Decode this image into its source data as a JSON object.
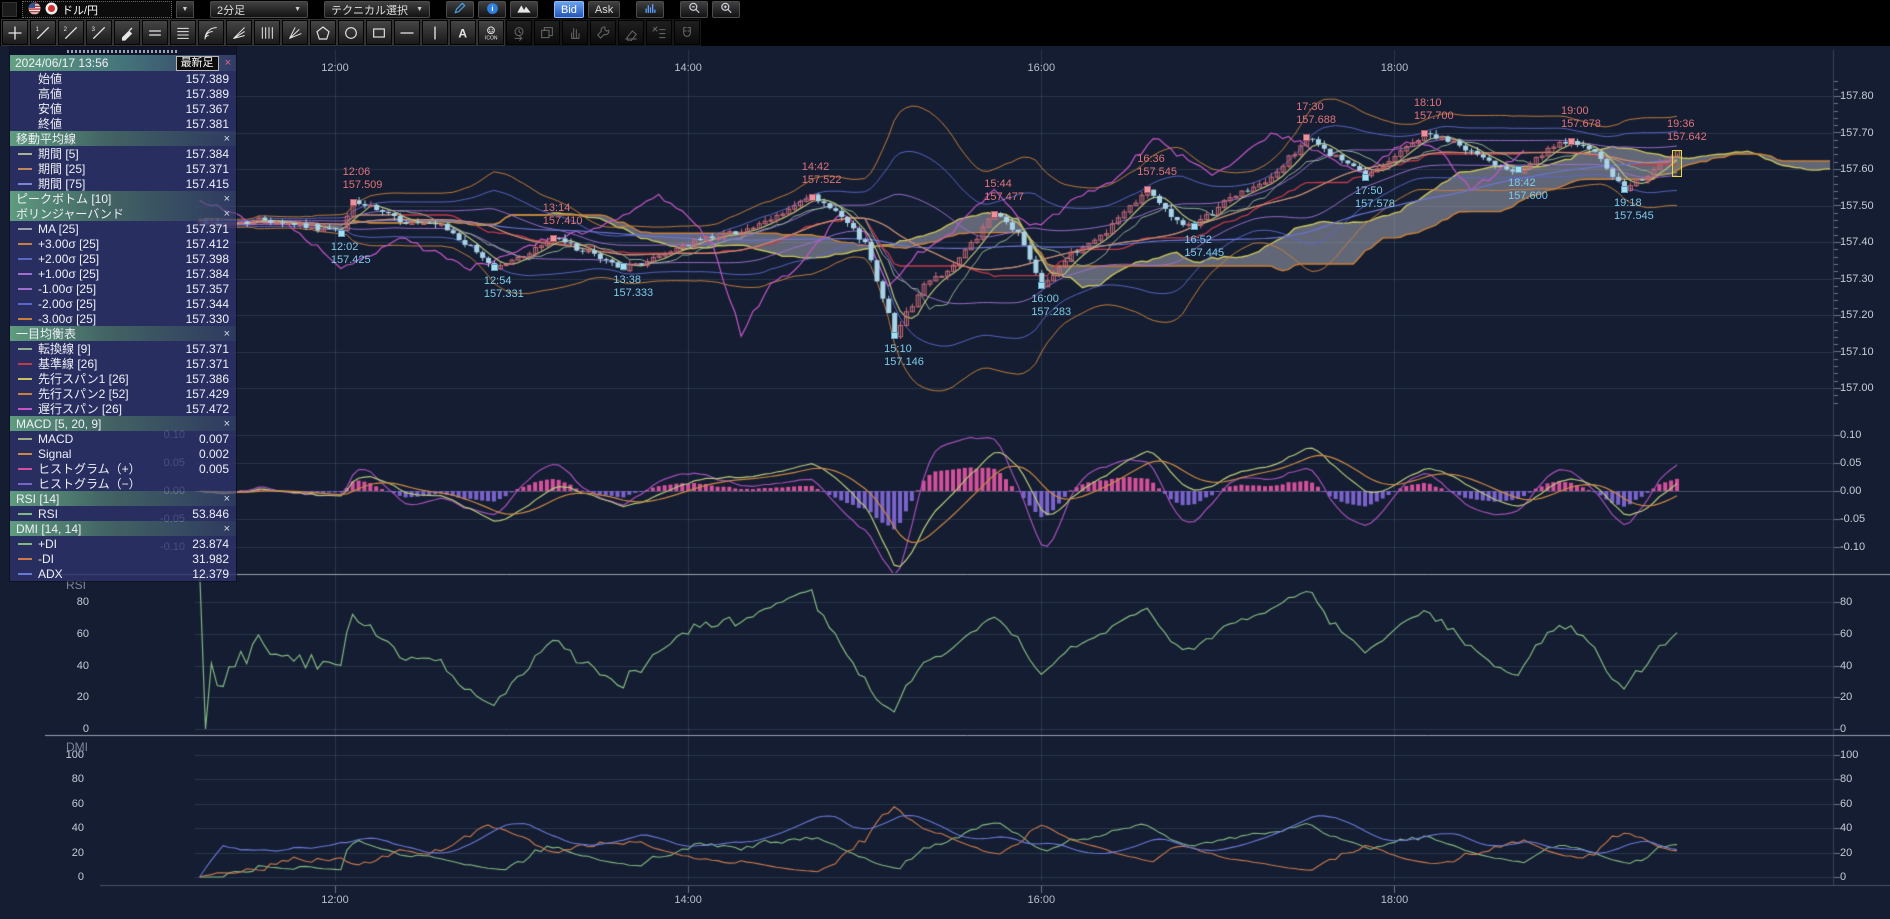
{
  "topbar": {
    "symbol": "ドル/円",
    "timeframe": "2分足",
    "technical": "テクニカル選択",
    "bid": "Bid",
    "ask": "Ask",
    "icons": [
      "us-flag",
      "jp-flag",
      "dropdown-arrow",
      "pencil",
      "info",
      "mountain",
      "bar-chart",
      "zoom-out",
      "zoom-in"
    ]
  },
  "drawbar": {
    "tools": [
      {
        "name": "crosshair",
        "enabled": true
      },
      {
        "name": "trendline-1",
        "enabled": true
      },
      {
        "name": "trendline-2",
        "enabled": true
      },
      {
        "name": "trendline-3",
        "enabled": true
      },
      {
        "name": "marker-pen",
        "enabled": true
      },
      {
        "name": "parallel-lines-2",
        "enabled": true
      },
      {
        "name": "parallel-lines-4",
        "enabled": true
      },
      {
        "name": "fibonacci-arc",
        "enabled": true
      },
      {
        "name": "fan-lines",
        "enabled": true
      },
      {
        "name": "vertical-lines",
        "enabled": true
      },
      {
        "name": "ray-fan",
        "enabled": true
      },
      {
        "name": "pentagon",
        "enabled": true
      },
      {
        "name": "circle",
        "enabled": true
      },
      {
        "name": "rectangle",
        "enabled": true
      },
      {
        "name": "horizontal-line",
        "enabled": true
      },
      {
        "name": "vertical-line",
        "enabled": true
      },
      {
        "name": "text",
        "enabled": true
      },
      {
        "name": "icon-stamp",
        "enabled": true
      },
      {
        "name": "history-clock",
        "enabled": false
      },
      {
        "name": "copy",
        "enabled": false
      },
      {
        "name": "hand",
        "enabled": false
      },
      {
        "name": "wrench",
        "enabled": false
      },
      {
        "name": "eraser",
        "enabled": false
      },
      {
        "name": "wrench-list",
        "enabled": false
      },
      {
        "name": "magnet",
        "enabled": false
      }
    ]
  },
  "data_panel": {
    "title": "2024/06/17 13:56",
    "latest_label": "最新足",
    "ohlc": [
      {
        "label": "始値",
        "value": "157.389"
      },
      {
        "label": "高値",
        "value": "157.389"
      },
      {
        "label": "安値",
        "value": "157.367"
      },
      {
        "label": "終値",
        "value": "157.381"
      }
    ],
    "sections": [
      {
        "header": "移動平均線",
        "rows": [
          {
            "label": "期間 [5]",
            "value": "157.384",
            "color": "#a9b38e"
          },
          {
            "label": "期間 [25]",
            "value": "157.371",
            "color": "#c28563"
          },
          {
            "label": "期間 [75]",
            "value": "157.415",
            "color": "#7b85d6"
          }
        ]
      },
      {
        "header": "ピークボトム [10]",
        "rows": []
      },
      {
        "header": "ボリンジャーバンド",
        "rows": [
          {
            "label": "MA [25]",
            "value": "157.371",
            "color": "#9aa0b0"
          },
          {
            "label": "+3.00σ [25]",
            "value": "157.412",
            "color": "#c9803a"
          },
          {
            "label": "+2.00σ [25]",
            "value": "157.398",
            "color": "#5a66c8"
          },
          {
            "label": "+1.00σ [25]",
            "value": "157.384",
            "color": "#9d6fd0"
          },
          {
            "label": "-1.00σ [25]",
            "value": "157.357",
            "color": "#9d6fd0"
          },
          {
            "label": "-2.00σ [25]",
            "value": "157.344",
            "color": "#5a66c8"
          },
          {
            "label": "-3.00σ [25]",
            "value": "157.330",
            "color": "#c9803a"
          }
        ]
      },
      {
        "header": "一目均衡表",
        "rows": [
          {
            "label": "転換線 [9]",
            "value": "157.371",
            "color": "#8fae92"
          },
          {
            "label": "基準線 [26]",
            "value": "157.371",
            "color": "#c23a4a"
          },
          {
            "label": "先行スパン1 [26]",
            "value": "157.386",
            "color": "#c9c35a"
          },
          {
            "label": "先行スパン2 [52]",
            "value": "157.429",
            "color": "#c9803a"
          },
          {
            "label": "遅行スパン [26]",
            "value": "157.472",
            "color": "#c455c8"
          }
        ]
      },
      {
        "header": "MACD [5, 20, 9]",
        "rows": [
          {
            "label": "MACD",
            "value": "0.007",
            "color": "#9fae84"
          },
          {
            "label": "Signal",
            "value": "0.002",
            "color": "#cc8844"
          },
          {
            "label": "ヒストグラム（+）",
            "value": "0.005",
            "color": "#d4509c"
          },
          {
            "label": "ヒストグラム（−）",
            "value": "",
            "color": "#7a63cc"
          }
        ]
      },
      {
        "header": "RSI [14]",
        "rows": [
          {
            "label": "RSI",
            "value": "53.846",
            "color": "#82b882"
          }
        ]
      },
      {
        "header": "DMI [14, 14]",
        "rows": [
          {
            "label": "+DI",
            "value": "23.874",
            "color": "#82b882"
          },
          {
            "label": "-DI",
            "value": "31.982",
            "color": "#cc7a4e"
          },
          {
            "label": "ADX",
            "value": "12.379",
            "color": "#6a78d8"
          }
        ]
      }
    ]
  },
  "chart_data": {
    "type": "candlestick",
    "symbol": "ドル/円",
    "timeframe": "2分足",
    "date": "2024/06/17",
    "time_axis": {
      "ticks": [
        "12:00",
        "14:00",
        "16:00",
        "18:00"
      ],
      "visible_range": [
        "11:12",
        "20:28"
      ]
    },
    "main_panel": {
      "price_ticks": [
        157.8,
        157.7,
        157.6,
        157.5,
        157.4,
        157.3,
        157.2,
        157.1,
        157.0
      ],
      "price_min": 156.92,
      "price_max": 157.93,
      "ohlc_latest": {
        "open": 157.389,
        "high": 157.389,
        "low": 157.367,
        "close": 157.381
      },
      "price_path_anchors": [
        [
          "11:14",
          157.458
        ],
        [
          "11:24",
          157.445
        ],
        [
          "11:36",
          157.462
        ],
        [
          "11:48",
          157.452
        ],
        [
          "12:02",
          157.425
        ],
        [
          "12:06",
          157.509
        ],
        [
          "12:16",
          157.48
        ],
        [
          "12:24",
          157.458
        ],
        [
          "12:36",
          157.442
        ],
        [
          "12:54",
          157.331
        ],
        [
          "13:02",
          157.36
        ],
        [
          "13:14",
          157.41
        ],
        [
          "13:24",
          157.372
        ],
        [
          "13:38",
          157.333
        ],
        [
          "13:50",
          157.36
        ],
        [
          "13:56",
          157.381
        ],
        [
          "14:10",
          157.42
        ],
        [
          "14:26",
          157.452
        ],
        [
          "14:42",
          157.522
        ],
        [
          "14:52",
          157.47
        ],
        [
          "15:00",
          157.4
        ],
        [
          "15:06",
          157.25
        ],
        [
          "15:10",
          157.146
        ],
        [
          "15:20",
          157.28
        ],
        [
          "15:30",
          157.34
        ],
        [
          "15:44",
          157.477
        ],
        [
          "15:52",
          157.42
        ],
        [
          "16:00",
          157.283
        ],
        [
          "16:10",
          157.37
        ],
        [
          "16:22",
          157.43
        ],
        [
          "16:36",
          157.545
        ],
        [
          "16:44",
          157.47
        ],
        [
          "16:52",
          157.445
        ],
        [
          "17:04",
          157.52
        ],
        [
          "17:16",
          157.56
        ],
        [
          "17:30",
          157.688
        ],
        [
          "17:40",
          157.63
        ],
        [
          "17:50",
          157.578
        ],
        [
          "18:00",
          157.64
        ],
        [
          "18:10",
          157.7
        ],
        [
          "18:22",
          157.66
        ],
        [
          "18:32",
          157.62
        ],
        [
          "18:42",
          157.6
        ],
        [
          "18:52",
          157.65
        ],
        [
          "19:00",
          157.678
        ],
        [
          "19:08",
          157.64
        ],
        [
          "19:18",
          157.545
        ],
        [
          "19:28",
          157.6
        ],
        [
          "19:36",
          157.642
        ]
      ],
      "peak_bottom_labels": [
        {
          "time": "12:06",
          "price": "157.509",
          "type": "peak"
        },
        {
          "time": "13:14",
          "price": "157.410",
          "type": "peak"
        },
        {
          "time": "14:42",
          "price": "157.522",
          "type": "peak"
        },
        {
          "time": "15:44",
          "price": "157.477",
          "type": "peak"
        },
        {
          "time": "16:36",
          "price": "157.545",
          "type": "peak"
        },
        {
          "time": "17:30",
          "price": "157.688",
          "type": "peak"
        },
        {
          "time": "18:10",
          "price": "157.700",
          "type": "peak"
        },
        {
          "time": "19:00",
          "price": "157.678",
          "type": "peak"
        },
        {
          "time": "19:36",
          "price": "157.642",
          "type": "current"
        },
        {
          "time": "12:02",
          "price": "157.425",
          "type": "bottom"
        },
        {
          "time": "12:54",
          "price": "157.331",
          "type": "bottom"
        },
        {
          "time": "13:38",
          "price": "157.333",
          "type": "bottom"
        },
        {
          "time": "15:10",
          "price": "157.146",
          "type": "bottom"
        },
        {
          "time": "16:00",
          "price": "157.283",
          "type": "bottom"
        },
        {
          "time": "16:52",
          "price": "157.445",
          "type": "bottom"
        },
        {
          "time": "17:50",
          "price": "157.578",
          "type": "bottom"
        },
        {
          "time": "18:42",
          "price": "157.600",
          "type": "bottom"
        },
        {
          "time": "19:18",
          "price": "157.545",
          "type": "bottom"
        }
      ]
    },
    "macd_panel": {
      "ticks": [
        0.1,
        0.05,
        0.0,
        -0.05,
        -0.1
      ],
      "macd": 0.007,
      "signal": 0.002,
      "histogram": 0.005
    },
    "rsi_panel": {
      "label": "RSI",
      "ticks": [
        80,
        60,
        40,
        20,
        0
      ],
      "rsi": 53.846
    },
    "dmi_panel": {
      "label": "DMI",
      "ticks": [
        100,
        80,
        60,
        40,
        20,
        0
      ],
      "plus_di": 23.874,
      "minus_di": 31.982,
      "adx": 12.379
    },
    "palette": {
      "background": "#141d31",
      "grid": "rgba(125,140,170,0.22)",
      "separator": "#9aa2b0",
      "axis_border": "#39415a",
      "candle_up": "#c76a76",
      "candle_down": "#a9d3e6",
      "ma5": "#b9c178",
      "ma25": "#c98a6a",
      "ma75": "#6a74d4",
      "bb1": "#9d6fd0",
      "bb2": "#5a66c8",
      "bb3": "#c9803a",
      "bb_ma": "#9aa0b0",
      "tenkan": "#8fae92",
      "kijun": "#c23a4a",
      "senkou_a": "#c9c35a",
      "senkou_b": "#c9803a",
      "chikou": "#c455c8",
      "cloud": "rgba(175,178,190,0.5)",
      "macd": "#b9c87a",
      "macd_signal": "#cc8844",
      "macd_aux": "#b455c8",
      "hist_pos": "#d4509c",
      "hist_neg": "#7a63cc",
      "rsi": "#82b882",
      "di_plus": "#82b882",
      "di_minus": "#cc7a4e",
      "adx": "#6a78d8",
      "peak": "#e0737a",
      "bottom": "#7ecbe8",
      "current": "#e8d84a"
    }
  }
}
